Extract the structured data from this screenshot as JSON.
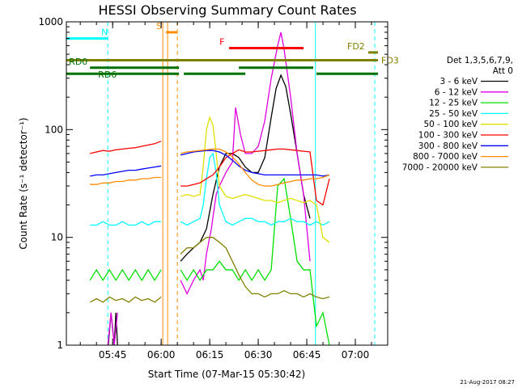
{
  "chart_data": {
    "type": "line",
    "title": "HESSI Observing Summary Count Rates",
    "xlabel": "Start Time (07-Mar-15 05:30:42)",
    "ylabel": "Count Rate (s⁻¹ detector⁻¹)",
    "y_scale": "log",
    "ylim": [
      1,
      1000
    ],
    "xlim": [
      "05:30:42",
      "07:10:00"
    ],
    "x_ticks": [
      "05:45",
      "06:00",
      "06:15",
      "06:30",
      "06:45",
      "07:00"
    ],
    "y_ticks": [
      "1",
      "10",
      "100",
      "1000"
    ],
    "footer_date": "21-Aug-2017 08:27",
    "legend": {
      "header": [
        "Det 1,3,5,6,7,9,",
        "Att 0"
      ],
      "position": "right"
    },
    "series": [
      {
        "name": "3 - 6 keV",
        "color": "#000000",
        "segments": [
          {
            "x": [
              "05:43:40",
              "05:44:30",
              "05:45:30",
              "05:46:00",
              "05:46:30"
            ],
            "y": [
              1,
              2,
              1,
              2,
              1
            ]
          },
          {
            "x": [
              "06:06:00",
              "06:08:00",
              "06:10:00",
              "06:12:00",
              "06:14:00",
              "06:16:00",
              "06:18:00",
              "06:20:00",
              "06:22:00",
              "06:24:00",
              "06:26:00",
              "06:28:00",
              "06:30:00",
              "06:32:00",
              "06:34:00",
              "06:35:30",
              "06:37:00",
              "06:38:30",
              "06:40:00",
              "06:42:00",
              "06:44:00",
              "06:46:00"
            ],
            "y": [
              6,
              7,
              8,
              9,
              12,
              25,
              45,
              60,
              60,
              55,
              45,
              40,
              40,
              55,
              130,
              240,
              320,
              250,
              140,
              60,
              25,
              15
            ]
          }
        ]
      },
      {
        "name": "6 - 12 keV",
        "color": "#e000e0",
        "segments": [
          {
            "x": [
              "05:43:30",
              "05:44:30",
              "05:45:30",
              "05:46:30"
            ],
            "y": [
              1,
              2,
              1,
              2
            ]
          },
          {
            "x": [
              "06:06:00",
              "06:08:00",
              "06:10:00",
              "06:12:00",
              "06:13:00",
              "06:14:00",
              "06:15:30",
              "06:17:00",
              "06:18:00",
              "06:20:00",
              "06:22:00",
              "06:23:00",
              "06:24:30",
              "06:26:00",
              "06:28:00",
              "06:30:00",
              "06:32:00",
              "06:34:00",
              "06:36:00",
              "06:37:00",
              "06:38:00",
              "06:40:00",
              "06:42:00",
              "06:44:00",
              "06:46:00"
            ],
            "y": [
              4,
              3,
              4,
              5,
              4,
              7,
              12,
              25,
              30,
              40,
              50,
              160,
              90,
              60,
              60,
              70,
              120,
              300,
              600,
              800,
              550,
              200,
              60,
              25,
              6
            ]
          }
        ]
      },
      {
        "name": "12 - 25 keV",
        "color": "#00e000",
        "segments": [
          {
            "x": [
              "05:38:00",
              "05:40:00",
              "05:42:00",
              "05:44:00",
              "05:46:00",
              "05:48:00",
              "05:50:00",
              "05:52:00",
              "05:54:00",
              "05:56:00",
              "05:58:00",
              "06:00:00"
            ],
            "y": [
              4,
              5,
              4,
              5,
              4,
              5,
              4,
              5,
              4,
              5,
              4,
              5
            ]
          },
          {
            "x": [
              "06:06:00",
              "06:08:00",
              "06:10:00",
              "06:12:00",
              "06:14:00",
              "06:16:00",
              "06:18:00",
              "06:20:00",
              "06:22:00",
              "06:24:00",
              "06:26:00",
              "06:28:00",
              "06:30:00",
              "06:32:00",
              "06:34:00",
              "06:36:00",
              "06:38:00",
              "06:40:00",
              "06:42:00",
              "06:44:00",
              "06:46:00",
              "06:48:00",
              "06:50:00",
              "06:52:00"
            ],
            "y": [
              5,
              4,
              5,
              4,
              5,
              5,
              6,
              5,
              5,
              4,
              5,
              4,
              5,
              4,
              5,
              30,
              35,
              15,
              6,
              5,
              5,
              1.5,
              2,
              1
            ]
          }
        ]
      },
      {
        "name": "25 - 50 keV",
        "color": "#00ffff",
        "segments": [
          {
            "x": [
              "05:38:00",
              "05:40:00",
              "05:42:00",
              "05:44:00",
              "05:46:00",
              "05:48:00",
              "05:50:00",
              "05:52:00",
              "05:54:00",
              "05:56:00",
              "05:58:00",
              "06:00:00"
            ],
            "y": [
              13,
              13,
              14,
              13,
              13,
              14,
              13,
              13,
              14,
              13,
              14,
              14
            ]
          },
          {
            "x": [
              "06:06:00",
              "06:08:00",
              "06:10:00",
              "06:12:00",
              "06:13:00",
              "06:14:00",
              "06:15:00",
              "06:16:00",
              "06:17:00",
              "06:18:00",
              "06:20:00",
              "06:22:00",
              "06:24:00",
              "06:26:00",
              "06:28:00",
              "06:30:00",
              "06:32:00",
              "06:34:00",
              "06:36:00",
              "06:38:00",
              "06:40:00",
              "06:42:00",
              "06:44:00",
              "06:46:00",
              "06:48:00",
              "06:50:00",
              "06:52:00"
            ],
            "y": [
              14,
              13,
              14,
              15,
              20,
              35,
              55,
              60,
              40,
              20,
              14,
              13,
              14,
              15,
              15,
              14,
              14,
              13,
              14,
              14,
              15,
              14,
              14,
              13,
              14,
              13,
              14
            ]
          }
        ]
      },
      {
        "name": "50 - 100 keV",
        "color": "#e0e000",
        "segments": [
          {
            "x": [
              "06:06:00",
              "06:08:00",
              "06:10:00",
              "06:12:00",
              "06:13:00",
              "06:14:00",
              "06:15:00",
              "06:16:00",
              "06:17:00",
              "06:18:00",
              "06:20:00",
              "06:22:00",
              "06:24:00",
              "06:26:00",
              "06:28:00",
              "06:30:00",
              "06:32:00",
              "06:34:00",
              "06:36:00",
              "06:38:00",
              "06:40:00",
              "06:42:00",
              "06:44:00",
              "06:46:00",
              "06:48:00",
              "06:50:00",
              "06:52:00"
            ],
            "y": [
              24,
              25,
              24,
              25,
              45,
              100,
              130,
              110,
              60,
              30,
              24,
              23,
              24,
              25,
              24,
              23,
              22,
              22,
              21,
              22,
              23,
              22,
              21,
              22,
              20,
              10,
              9
            ]
          }
        ]
      },
      {
        "name": "100 - 300 keV",
        "color": "#ff0000",
        "segments": [
          {
            "x": [
              "05:38:00",
              "05:40:00",
              "05:42:00",
              "05:44:00",
              "05:46:00",
              "05:48:00",
              "05:50:00",
              "05:52:00",
              "05:54:00",
              "05:56:00",
              "05:58:00",
              "06:00:00"
            ],
            "y": [
              60,
              62,
              64,
              63,
              65,
              66,
              67,
              68,
              70,
              72,
              74,
              78
            ]
          },
          {
            "x": [
              "06:06:00",
              "06:08:00",
              "06:10:00",
              "06:12:00",
              "06:14:00",
              "06:16:00",
              "06:18:00",
              "06:20:00",
              "06:22:00",
              "06:24:00",
              "06:26:00",
              "06:28:00",
              "06:30:00",
              "06:32:00",
              "06:34:00",
              "06:36:00",
              "06:38:00",
              "06:40:00",
              "06:42:00",
              "06:44:00",
              "06:46:00",
              "06:48:00",
              "06:50:00",
              "06:52:00"
            ],
            "y": [
              30,
              30,
              31,
              32,
              35,
              38,
              45,
              55,
              60,
              65,
              62,
              62,
              63,
              64,
              65,
              66,
              66,
              65,
              64,
              63,
              62,
              22,
              20,
              35
            ]
          }
        ]
      },
      {
        "name": "300 - 800 keV",
        "color": "#0000ff",
        "segments": [
          {
            "x": [
              "05:38:00",
              "05:40:00",
              "05:42:00",
              "05:44:00",
              "05:46:00",
              "05:48:00",
              "05:50:00",
              "05:52:00",
              "05:54:00",
              "05:56:00",
              "05:58:00",
              "06:00:00"
            ],
            "y": [
              37,
              38,
              38,
              39,
              40,
              41,
              42,
              42,
              43,
              44,
              45,
              46
            ]
          },
          {
            "x": [
              "06:06:00",
              "06:08:00",
              "06:10:00",
              "06:12:00",
              "06:14:00",
              "06:16:00",
              "06:18:00",
              "06:20:00",
              "06:22:00",
              "06:24:00",
              "06:26:00",
              "06:28:00",
              "06:30:00",
              "06:32:00",
              "06:34:00",
              "06:36:00",
              "06:38:00",
              "06:40:00",
              "06:42:00",
              "06:44:00",
              "06:46:00",
              "06:48:00",
              "06:50:00",
              "06:52:00"
            ],
            "y": [
              58,
              60,
              62,
              63,
              64,
              64,
              62,
              58,
              52,
              46,
              42,
              40,
              39,
              38,
              38,
              38,
              38,
              38,
              38,
              38,
              38,
              38,
              37,
              38
            ]
          }
        ]
      },
      {
        "name": "800 - 7000 keV",
        "color": "#ff8c00",
        "segments": [
          {
            "x": [
              "05:38:00",
              "05:40:00",
              "05:42:00",
              "05:44:00",
              "05:46:00",
              "05:48:00",
              "05:50:00",
              "05:52:00",
              "05:54:00",
              "05:56:00",
              "05:58:00",
              "06:00:00"
            ],
            "y": [
              31,
              31,
              32,
              32,
              33,
              33,
              34,
              34,
              35,
              35,
              36,
              36
            ]
          },
          {
            "x": [
              "06:06:00",
              "06:08:00",
              "06:10:00",
              "06:12:00",
              "06:14:00",
              "06:16:00",
              "06:18:00",
              "06:20:00",
              "06:22:00",
              "06:24:00",
              "06:26:00",
              "06:28:00",
              "06:30:00",
              "06:32:00",
              "06:34:00",
              "06:36:00",
              "06:38:00",
              "06:40:00",
              "06:42:00",
              "06:44:00",
              "06:46:00",
              "06:48:00",
              "06:50:00",
              "06:52:00"
            ],
            "y": [
              60,
              62,
              63,
              64,
              65,
              66,
              66,
              62,
              56,
              48,
              40,
              34,
              31,
              30,
              30,
              31,
              32,
              33,
              34,
              34,
              35,
              35,
              36,
              38
            ]
          }
        ]
      },
      {
        "name": "7000 - 20000 keV",
        "color": "#808000",
        "segments": [
          {
            "x": [
              "05:38:00",
              "05:40:00",
              "05:42:00",
              "05:44:00",
              "05:46:00",
              "05:48:00",
              "05:50:00",
              "05:52:00",
              "05:54:00",
              "05:56:00",
              "05:58:00",
              "06:00:00"
            ],
            "y": [
              2.5,
              2.7,
              2.5,
              2.8,
              2.6,
              2.7,
              2.5,
              2.8,
              2.6,
              2.7,
              2.5,
              2.8
            ]
          },
          {
            "x": [
              "06:06:00",
              "06:08:00",
              "06:10:00",
              "06:12:00",
              "06:14:00",
              "06:16:00",
              "06:18:00",
              "06:20:00",
              "06:22:00",
              "06:24:00",
              "06:26:00",
              "06:28:00",
              "06:30:00",
              "06:32:00",
              "06:34:00",
              "06:36:00",
              "06:38:00",
              "06:40:00",
              "06:42:00",
              "06:44:00",
              "06:46:00",
              "06:48:00",
              "06:50:00",
              "06:52:00"
            ],
            "y": [
              7,
              8,
              8,
              9,
              10,
              10,
              9,
              8,
              6,
              4.5,
              3.5,
              3,
              3,
              2.8,
              3,
              3,
              3.2,
              3,
              3,
              2.8,
              3,
              2.8,
              2.7,
              2.8
            ]
          }
        ]
      }
    ],
    "annotations": [
      {
        "label": "N",
        "color": "#00ffff",
        "start": "05:30:42",
        "end": "05:43:30",
        "level": 700
      },
      {
        "label": "S",
        "color": "#ff8c00",
        "start": "06:01:30",
        "end": "06:05:00",
        "level": 800
      },
      {
        "label": "F",
        "color": "#ff0000",
        "start": "06:21:00",
        "end": "06:44:00",
        "level": 570
      },
      {
        "label": "FD2",
        "color": "#808000",
        "start": "07:04:00",
        "end": "07:07:00",
        "level": 520
      },
      {
        "label": "FD3",
        "color": "#808000",
        "start": "05:30:42",
        "end": "07:07:00",
        "level": 440
      },
      {
        "label": "RD0",
        "color": "#007000",
        "start": "05:38:00",
        "end": "06:05:30",
        "level": 375
      },
      {
        "label": "RD6",
        "color": "#007000",
        "start": "05:30:42",
        "end": "05:40:30",
        "level": 330
      }
    ],
    "green_bars": [
      {
        "start": "05:40:30",
        "end": "06:05:30",
        "level": 330
      },
      {
        "start": "06:07:00",
        "end": "06:26:00",
        "level": 330
      },
      {
        "start": "06:24:00",
        "end": "06:47:00",
        "level": 375
      },
      {
        "start": "06:48:00",
        "end": "07:07:00",
        "level": 330
      }
    ],
    "vertical_lines": [
      {
        "t": "05:30:42",
        "color": "#00ffff",
        "style": "solid"
      },
      {
        "t": "05:43:30",
        "color": "#00ffff",
        "style": "dashed"
      },
      {
        "t": "06:00:30",
        "color": "#ff8c00",
        "style": "solid"
      },
      {
        "t": "06:02:00",
        "color": "#ff8c00",
        "style": "solid"
      },
      {
        "t": "06:05:00",
        "color": "#ff8c00",
        "style": "dashed"
      },
      {
        "t": "06:47:40",
        "color": "#00ffff",
        "style": "solid"
      },
      {
        "t": "07:06:00",
        "color": "#00ffff",
        "style": "dashed"
      }
    ]
  }
}
